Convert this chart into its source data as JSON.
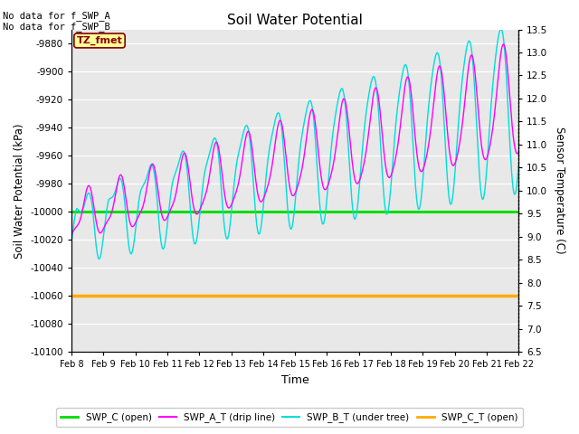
{
  "title": "Soil Water Potential",
  "xlabel": "Time",
  "ylabel_left": "Soil Water Potential (kPa)",
  "ylabel_right": "Sensor Temperature (C)",
  "annotation_top": "No data for f_SWP_A\nNo data for f_SWP_B",
  "box_label": "TZ_fmet",
  "ylim_left": [
    -10100,
    -9870
  ],
  "ylim_right": [
    6.5,
    13.5
  ],
  "yticks_left": [
    -10100,
    -10080,
    -10060,
    -10040,
    -10020,
    -10000,
    -9980,
    -9960,
    -9940,
    -9920,
    -9900,
    -9880
  ],
  "yticks_right": [
    6.5,
    7.0,
    7.5,
    8.0,
    8.5,
    9.0,
    9.5,
    10.0,
    10.5,
    11.0,
    11.5,
    12.0,
    12.5,
    13.0,
    13.5
  ],
  "swp_c_value": -10000,
  "swp_c_t_value": -10060,
  "colors": {
    "swp_c": "#00dd00",
    "swp_a_t": "#ff00ff",
    "swp_b_t": "#00dddd",
    "swp_c_t": "#ffaa00",
    "box_bg": "#ffff99",
    "box_border": "#880000",
    "box_text": "#880000"
  },
  "background_color": "#e8e8e8",
  "xtick_labels": [
    "Feb 8",
    "Feb 9",
    "Feb 10",
    "Feb 11",
    "Feb 12",
    "Feb 13",
    "Feb 14",
    "Feb 15",
    "Feb 16",
    "Feb 17",
    "Feb 18",
    "Feb 19",
    "Feb 20",
    "Feb 21",
    "Feb 22"
  ],
  "legend_labels": [
    "SWP_C (open)",
    "SWP_A_T (drip line)",
    "SWP_B_T (under tree)",
    "SWP_C_T (open)"
  ]
}
